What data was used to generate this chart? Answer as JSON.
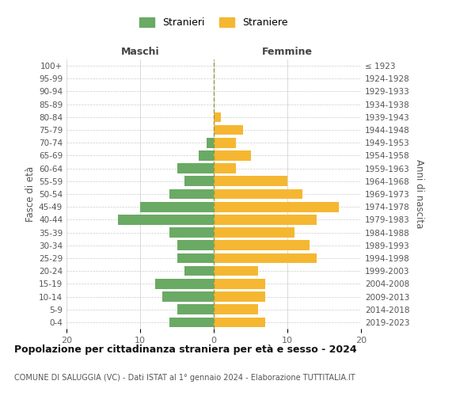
{
  "age_groups": [
    "0-4",
    "5-9",
    "10-14",
    "15-19",
    "20-24",
    "25-29",
    "30-34",
    "35-39",
    "40-44",
    "45-49",
    "50-54",
    "55-59",
    "60-64",
    "65-69",
    "70-74",
    "75-79",
    "80-84",
    "85-89",
    "90-94",
    "95-99",
    "100+"
  ],
  "birth_years": [
    "2019-2023",
    "2014-2018",
    "2009-2013",
    "2004-2008",
    "1999-2003",
    "1994-1998",
    "1989-1993",
    "1984-1988",
    "1979-1983",
    "1974-1978",
    "1969-1973",
    "1964-1968",
    "1959-1963",
    "1954-1958",
    "1949-1953",
    "1944-1948",
    "1939-1943",
    "1934-1938",
    "1929-1933",
    "1924-1928",
    "≤ 1923"
  ],
  "males": [
    6,
    5,
    7,
    8,
    4,
    5,
    5,
    6,
    13,
    10,
    6,
    4,
    5,
    2,
    1,
    0,
    0,
    0,
    0,
    0,
    0
  ],
  "females": [
    7,
    6,
    7,
    7,
    6,
    14,
    13,
    11,
    14,
    17,
    12,
    10,
    3,
    5,
    3,
    4,
    1,
    0,
    0,
    0,
    0
  ],
  "male_color": "#6aaa64",
  "female_color": "#f5b731",
  "background_color": "#ffffff",
  "grid_color": "#cccccc",
  "title": "Popolazione per cittadinanza straniera per età e sesso - 2024",
  "subtitle": "COMUNE DI SALUGGIA (VC) - Dati ISTAT al 1° gennaio 2024 - Elaborazione TUTTITALIA.IT",
  "ylabel_left": "Fasce di età",
  "ylabel_right": "Anni di nascita",
  "xlabel_left": "Maschi",
  "xlabel_right": "Femmine",
  "legend_male": "Stranieri",
  "legend_female": "Straniere",
  "xlim": 20
}
